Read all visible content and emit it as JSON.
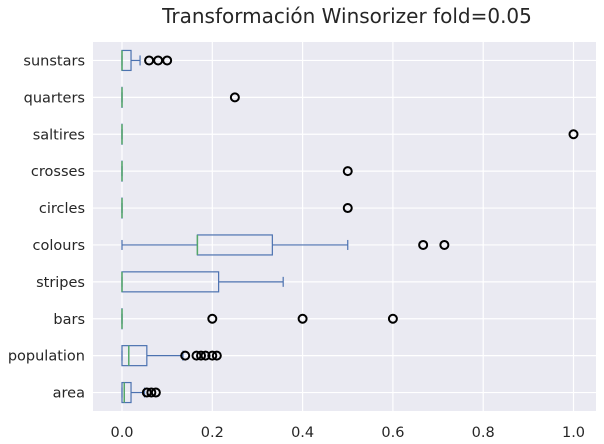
{
  "chart_data": {
    "type": "boxplot",
    "orientation": "horizontal",
    "title": "Transformación Winsorizer fold=0.05",
    "xlabel": "",
    "ylabel": "",
    "xlim": [
      -0.03,
      1.05
    ],
    "x_ticks": [
      0.0,
      0.2,
      0.4,
      0.6,
      0.8,
      1.0
    ],
    "x_tick_labels": [
      "0.0",
      "0.2",
      "0.4",
      "0.6",
      "0.8",
      "1.0"
    ],
    "grid": true,
    "background": "#eaeaf2",
    "colors": {
      "box": "#4c72b0",
      "median": "#55a868",
      "outlier": "#000000",
      "grid": "#ffffff",
      "text": "#262626"
    },
    "categories": [
      "sunstars",
      "quarters",
      "saltires",
      "crosses",
      "circles",
      "colours",
      "stripes",
      "bars",
      "population",
      "area"
    ],
    "boxes": [
      {
        "label": "sunstars",
        "whislo": 0.0,
        "q1": 0.0,
        "med": 0.0,
        "q3": 0.02,
        "whishi": 0.04,
        "fliers": [
          0.06,
          0.08,
          0.1
        ]
      },
      {
        "label": "quarters",
        "whislo": 0.0,
        "q1": 0.0,
        "med": 0.0,
        "q3": 0.0,
        "whishi": 0.0,
        "fliers": [
          0.25
        ]
      },
      {
        "label": "saltires",
        "whislo": 0.0,
        "q1": 0.0,
        "med": 0.0,
        "q3": 0.0,
        "whishi": 0.0,
        "fliers": [
          1.0
        ]
      },
      {
        "label": "crosses",
        "whislo": 0.0,
        "q1": 0.0,
        "med": 0.0,
        "q3": 0.0,
        "whishi": 0.0,
        "fliers": [
          0.5
        ]
      },
      {
        "label": "circles",
        "whislo": 0.0,
        "q1": 0.0,
        "med": 0.0,
        "q3": 0.0,
        "whishi": 0.0,
        "fliers": [
          0.5
        ]
      },
      {
        "label": "colours",
        "whislo": 0.0,
        "q1": 0.167,
        "med": 0.167,
        "q3": 0.333,
        "whishi": 0.5,
        "fliers": [
          0.667,
          0.714
        ]
      },
      {
        "label": "stripes",
        "whislo": 0.0,
        "q1": 0.0,
        "med": 0.0,
        "q3": 0.214,
        "whishi": 0.357,
        "fliers": []
      },
      {
        "label": "bars",
        "whislo": 0.0,
        "q1": 0.0,
        "med": 0.0,
        "q3": 0.0,
        "whishi": 0.0,
        "fliers": [
          0.2,
          0.4,
          0.6
        ]
      },
      {
        "label": "population",
        "whislo": 0.0,
        "q1": 0.0,
        "med": 0.015,
        "q3": 0.055,
        "whishi": 0.135,
        "fliers": [
          0.14,
          0.165,
          0.175,
          0.185,
          0.2,
          0.21
        ]
      },
      {
        "label": "area",
        "whislo": 0.0,
        "q1": 0.0,
        "med": 0.005,
        "q3": 0.02,
        "whishi": 0.05,
        "fliers": [
          0.055,
          0.065,
          0.075
        ]
      }
    ]
  }
}
